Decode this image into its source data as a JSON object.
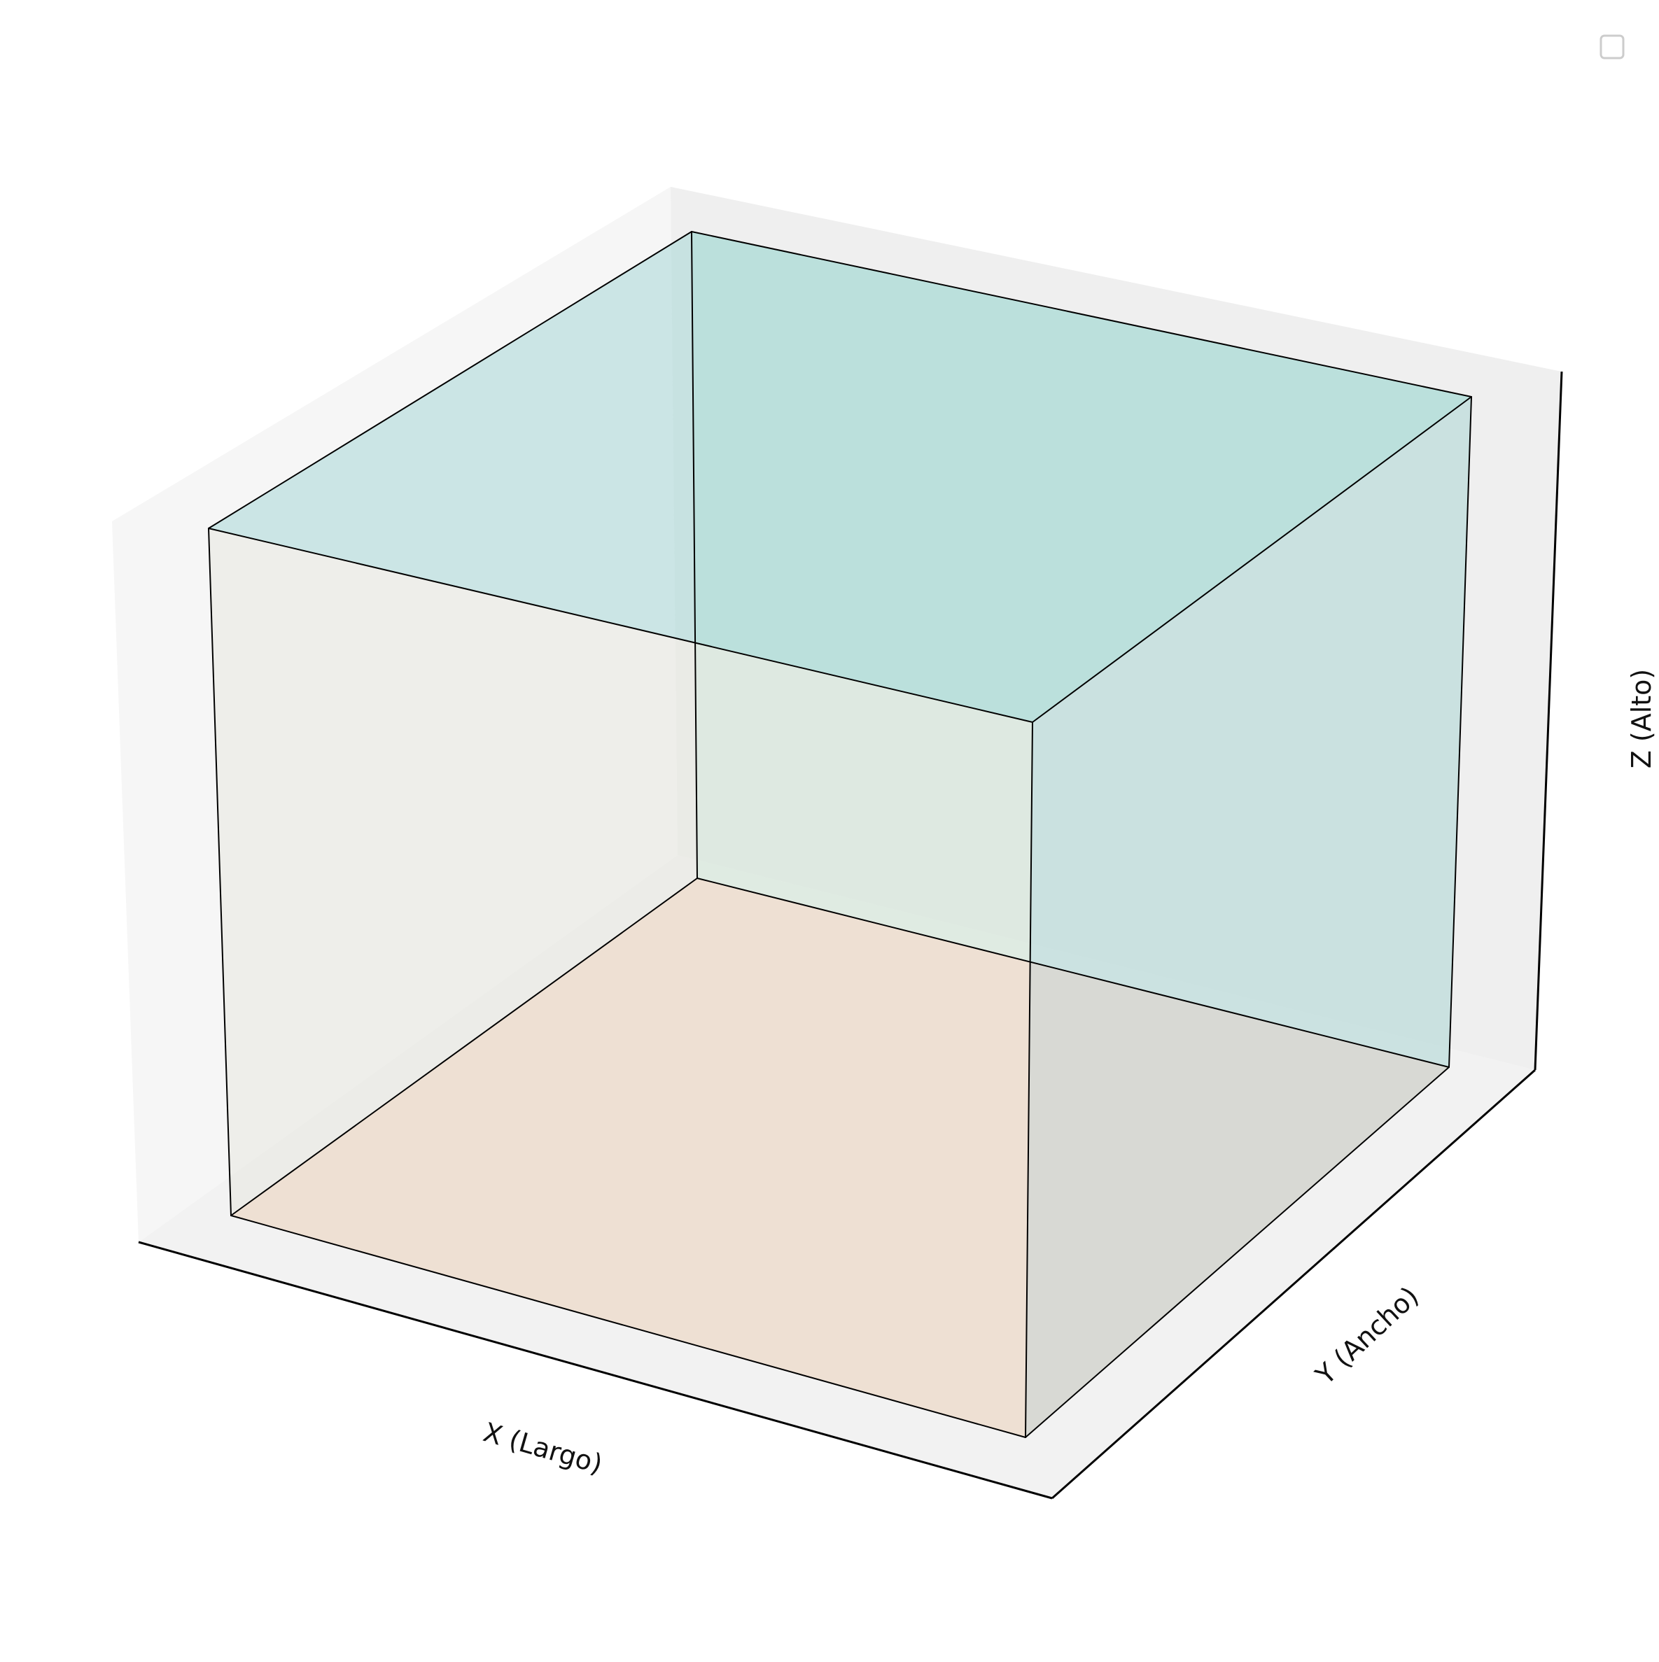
{
  "chart_data": {
    "type": "3d-box",
    "title": "",
    "xlabel": "X (Largo)",
    "ylabel": "Y (Ancho)",
    "zlabel": "Z (Alto)",
    "tick_labels_visible": false,
    "grid": false,
    "legend": {
      "placement": "upper-right",
      "entries": []
    },
    "faces": [
      {
        "name": "bottom",
        "color": "#f2c6b6"
      },
      {
        "name": "front",
        "color": "#e9ead8"
      },
      {
        "name": "right",
        "color": "#b8d6d6"
      },
      {
        "name": "back",
        "color": "#b2e0da"
      },
      {
        "name": "left",
        "color": "#e8e4f2"
      },
      {
        "name": "top",
        "color": "#84d2c9"
      }
    ],
    "pane_colors": {
      "floor": "#f2f2f2",
      "left": "#f6f6f6",
      "back": "#efefef"
    },
    "edge_color": "#000000"
  }
}
